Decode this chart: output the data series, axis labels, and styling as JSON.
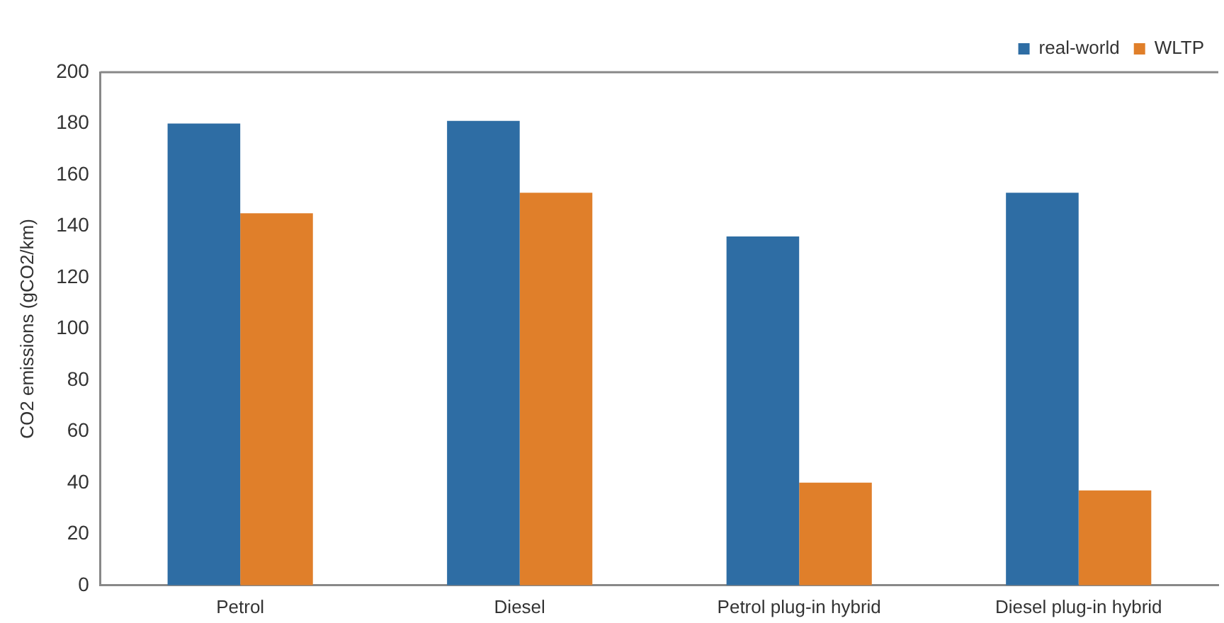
{
  "chart_data": {
    "type": "bar",
    "ylabel": "CO2 emissions (gCO2/km)",
    "categories": [
      "Petrol",
      "Diesel",
      "Petrol plug-in hybrid",
      "Diesel plug-in hybrid"
    ],
    "series": [
      {
        "name": "real-world",
        "color": "#2e6da4",
        "values": [
          180,
          181,
          136,
          153
        ]
      },
      {
        "name": "WLTP",
        "color": "#e07f2a",
        "values": [
          145,
          153,
          40,
          37
        ]
      }
    ],
    "ylim": [
      0,
      200
    ],
    "yticks": [
      0,
      20,
      40,
      60,
      80,
      100,
      120,
      140,
      160,
      180,
      200
    ],
    "grid": false,
    "legend": "top right"
  }
}
